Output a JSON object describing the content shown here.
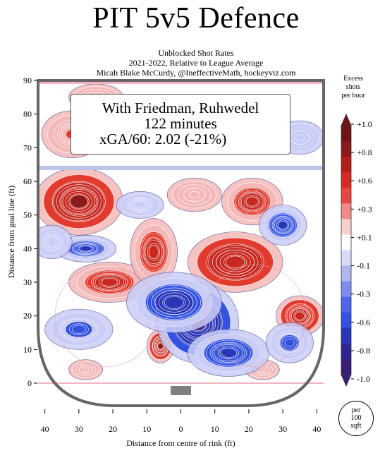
{
  "title": "PIT 5v5 Defence",
  "subtitle_lines": [
    "Unblocked Shot Rates",
    "2021-2022, Relative to League Average",
    "Micah Blake McCurdy, @IneffectiveMath, hockeyviz.com"
  ],
  "info_box": {
    "line1": "With Friedman, Ruhwedel",
    "line2": "122 minutes",
    "line3": "xGA/60: 2.02 (-21%)"
  },
  "legend": {
    "title_lines": [
      "Excess",
      "shots",
      "per hour"
    ],
    "labels": [
      "+1.0",
      "+0.8",
      "+0.6",
      "+0.3",
      "+0.1",
      "-0.1",
      "-0.3",
      "-0.6",
      "-0.8",
      "-1.0"
    ]
  },
  "per_badge": [
    "per",
    "100",
    "sqft"
  ],
  "colors": {
    "hot_dark": "#8b1a1a",
    "hot": "#e23b2e",
    "hot_light": "#f4b8b8",
    "neutral": "#ffffff",
    "cold_light": "#c9ccf6",
    "cold": "#3352e0",
    "cold_dark": "#3a1f7a",
    "rink_line_blue": "#b8c4e8",
    "goal_line_pink": "#f3b5c0"
  },
  "chart_data": {
    "type": "heatmap",
    "title": "PIT 5v5 Defence",
    "xlabel": "Distance from centre of rink (ft)",
    "ylabel": "Distance from goal line (ft)",
    "xlim": [
      42,
      -42
    ],
    "ylim": [
      0,
      90
    ],
    "x_ticks": [
      40,
      30,
      20,
      10,
      0,
      10,
      20,
      30,
      40
    ],
    "x_tick_values": [
      -40,
      -30,
      -20,
      -10,
      0,
      10,
      20,
      30,
      40
    ],
    "y_ticks": [
      0,
      10,
      20,
      30,
      40,
      50,
      60,
      70,
      80,
      90
    ],
    "colorbar_label": "Excess shots per hour",
    "colorbar_range": [
      -1.0,
      1.0
    ],
    "blue_line_y": 64,
    "hotspots": [
      {
        "x": 30,
        "y": 54,
        "value": 1.0,
        "rx": 13,
        "ry": 10
      },
      {
        "x": 21,
        "y": 30,
        "value": 0.6,
        "rx": 12,
        "ry": 6
      },
      {
        "x": 8,
        "y": 39,
        "value": 0.6,
        "rx": 7,
        "ry": 10
      },
      {
        "x": -16,
        "y": 36,
        "value": 0.8,
        "rx": 14,
        "ry": 9
      },
      {
        "x": -21,
        "y": 54,
        "value": 0.6,
        "rx": 9,
        "ry": 7
      },
      {
        "x": -35,
        "y": 20,
        "value": 0.7,
        "rx": 7,
        "ry": 6
      },
      {
        "x": 6,
        "y": 11,
        "value": 0.9,
        "rx": 4,
        "ry": 5
      },
      {
        "x": 32,
        "y": 74,
        "value": 0.3,
        "rx": 9,
        "ry": 7
      },
      {
        "x": -4,
        "y": 56,
        "value": 0.2,
        "rx": 8,
        "ry": 5
      },
      {
        "x": 25,
        "y": 85,
        "value": 0.15,
        "rx": 8,
        "ry": 4
      },
      {
        "x": 28,
        "y": 4,
        "value": 0.15,
        "rx": 5,
        "ry": 3
      },
      {
        "x": -24,
        "y": 4,
        "value": 0.15,
        "rx": 5,
        "ry": 3
      },
      {
        "x": -5,
        "y": 18,
        "value": -1.0,
        "rx": 12,
        "ry": 12
      },
      {
        "x": 2,
        "y": 24,
        "value": -0.8,
        "rx": 14,
        "ry": 9
      },
      {
        "x": -14,
        "y": 9,
        "value": -0.6,
        "rx": 12,
        "ry": 7
      },
      {
        "x": 28,
        "y": 40,
        "value": -0.6,
        "rx": 9,
        "ry": 4
      },
      {
        "x": 30,
        "y": 16,
        "value": -0.5,
        "rx": 10,
        "ry": 6
      },
      {
        "x": -30,
        "y": 47,
        "value": -0.6,
        "rx": 7,
        "ry": 6
      },
      {
        "x": -32,
        "y": 12,
        "value": -0.4,
        "rx": 7,
        "ry": 6
      },
      {
        "x": 12,
        "y": 53,
        "value": -0.3,
        "rx": 7,
        "ry": 4
      },
      {
        "x": 38,
        "y": 42,
        "value": -0.3,
        "rx": 6,
        "ry": 5
      },
      {
        "x": -35,
        "y": 73,
        "value": -0.2,
        "rx": 7,
        "ry": 5
      }
    ]
  }
}
